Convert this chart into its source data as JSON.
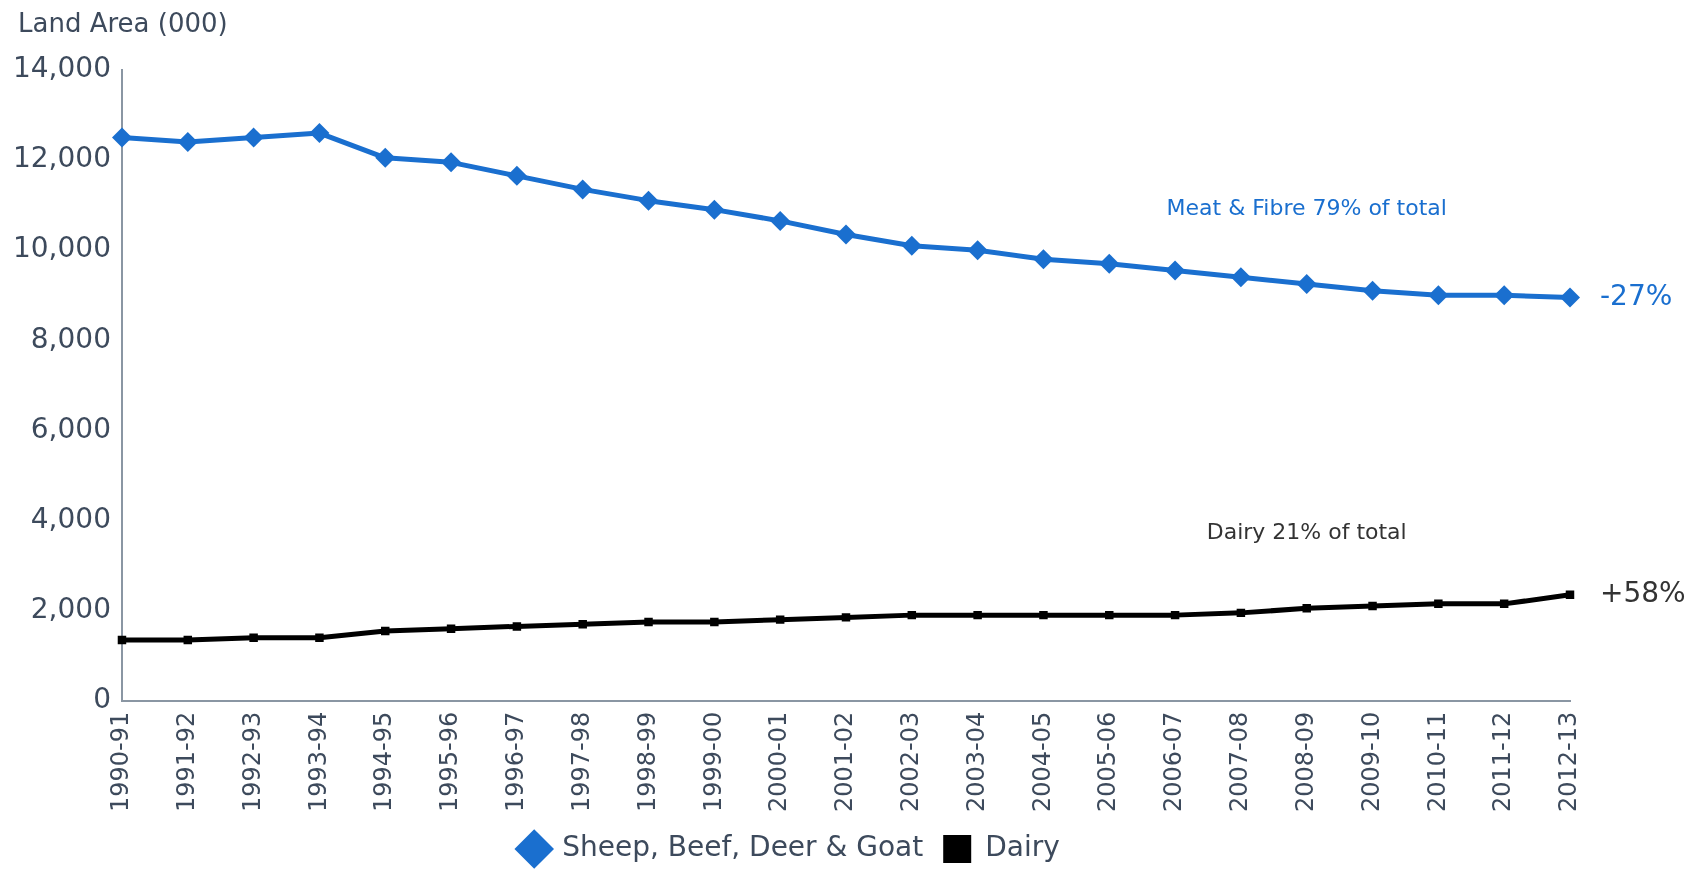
{
  "chart_data": {
    "type": "line",
    "ylabel": "Land Area (000)",
    "categories": [
      "1990-91",
      "1991-92",
      "1992-93",
      "1993-94",
      "1994-95",
      "1995-96",
      "1996-97",
      "1997-98",
      "1998-99",
      "1999-00",
      "2000-01",
      "2001-02",
      "2002-03",
      "2003-04",
      "2004-05",
      "2005-06",
      "2006-07",
      "2007-08",
      "2008-09",
      "2009-10",
      "2010-11",
      "2011-12",
      "2012-13"
    ],
    "series": [
      {
        "name": "Sheep, Beef, Deer & Goat",
        "color": "#1a6fcf",
        "marker": "diamond",
        "values": [
          12500,
          12400,
          12500,
          12600,
          12050,
          11950,
          11650,
          11350,
          11100,
          10900,
          10650,
          10350,
          10100,
          10000,
          9800,
          9700,
          9550,
          9400,
          9250,
          9100,
          9000,
          9000,
          8950
        ]
      },
      {
        "name": "Dairy",
        "color": "#000000",
        "marker": "square",
        "values": [
          1350,
          1350,
          1400,
          1400,
          1550,
          1600,
          1650,
          1700,
          1750,
          1750,
          1800,
          1850,
          1900,
          1900,
          1900,
          1900,
          1900,
          1950,
          2050,
          2100,
          2150,
          2150,
          2350
        ]
      }
    ],
    "ylim": [
      0,
      14000
    ],
    "yticks": [
      0,
      {
        "value": 2000,
        "label": "2,000"
      },
      {
        "value": 4000,
        "label": "4,000"
      },
      {
        "value": 6000,
        "label": "6,000"
      },
      {
        "value": 8000,
        "label": "8,000"
      },
      {
        "value": 10000,
        "label": "10,000"
      },
      {
        "value": 12000,
        "label": "12,000"
      },
      {
        "value": 14000,
        "label": "14,000"
      }
    ],
    "grid": false,
    "legend": "bottom",
    "line_style": "solid",
    "annotations": [
      "Meat & Fibre 79% of total",
      {
        "text": "-27%",
        "x": "2012-13",
        "y": 8950
      },
      "Dairy 21% of total",
      {
        "text": "+58%",
        "x": "2012-13",
        "y": 2350
      }
    ]
  }
}
